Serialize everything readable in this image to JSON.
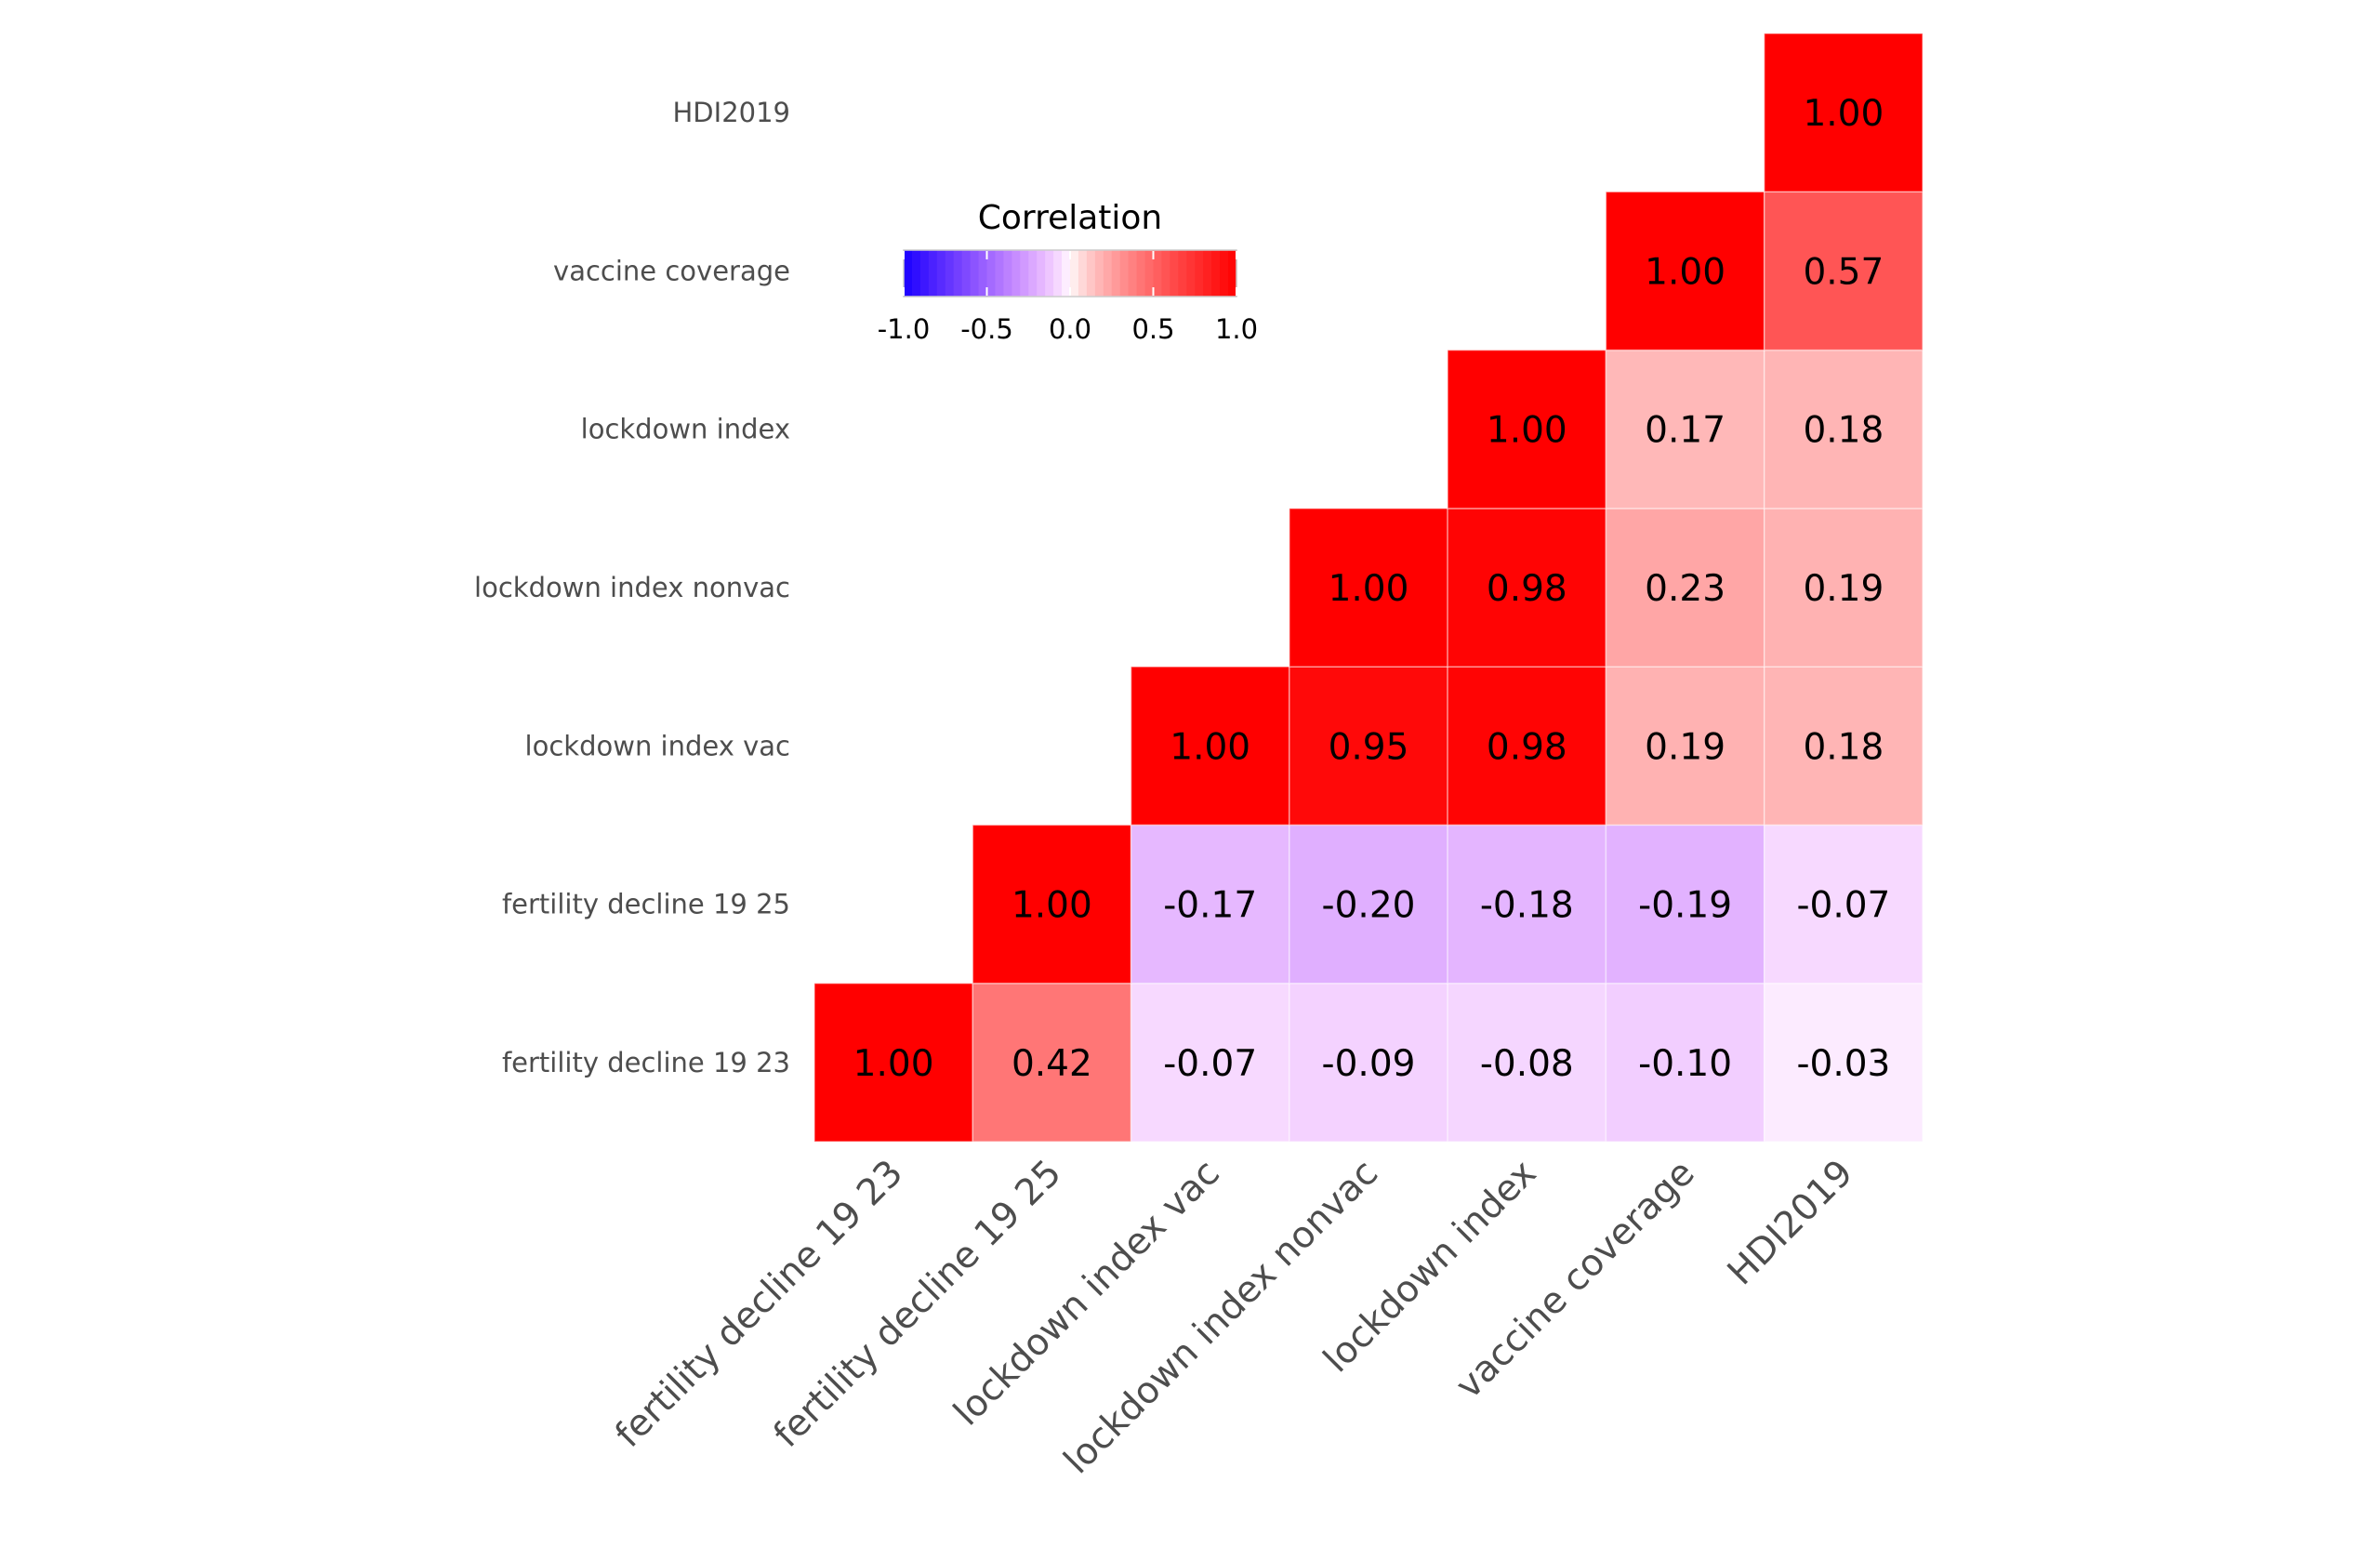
{
  "chart_data": {
    "type": "heatmap",
    "title": "",
    "xlabel": "",
    "ylabel": "",
    "variables": [
      "fertility decline 19 23",
      "fertility decline 19 25",
      "lockdown index vac",
      "lockdown index nonvac",
      "lockdown index",
      "vaccine coverage",
      "HDI2019"
    ],
    "x_tick_labels": [
      "fertility decline 19 23",
      "fertility decline 19 25",
      "lockdown index vac",
      "lockdown index nonvac",
      "lockdown index",
      "vaccine coverage",
      "HDI2019"
    ],
    "y_tick_labels_bottom_to_top": [
      "fertility decline 19 23",
      "fertility decline 19 25",
      "lockdown index vac",
      "lockdown index nonvac",
      "lockdown index",
      "vaccine coverage",
      "HDI2019"
    ],
    "matrix_note": "Upper triangle shown; row i (y, bottom to top) vs column j (x, left to right), null = not drawn",
    "matrix": [
      [
        1.0,
        0.42,
        -0.07,
        -0.09,
        -0.08,
        -0.1,
        -0.03
      ],
      [
        null,
        1.0,
        -0.17,
        -0.2,
        -0.18,
        -0.19,
        -0.07
      ],
      [
        null,
        null,
        1.0,
        0.95,
        0.98,
        0.19,
        0.18
      ],
      [
        null,
        null,
        null,
        1.0,
        0.98,
        0.23,
        0.19
      ],
      [
        null,
        null,
        null,
        null,
        1.0,
        0.17,
        0.18
      ],
      [
        null,
        null,
        null,
        null,
        null,
        1.0,
        0.57
      ],
      [
        null,
        null,
        null,
        null,
        null,
        null,
        1.0
      ]
    ],
    "labels": [
      [
        "1.00",
        "0.42",
        "-0.07",
        "-0.09",
        "-0.08",
        "-0.10",
        "-0.03"
      ],
      [
        null,
        "1.00",
        "-0.17",
        "-0.20",
        "-0.18",
        "-0.19",
        "-0.07"
      ],
      [
        null,
        null,
        "1.00",
        "0.95",
        "0.98",
        "0.19",
        "0.18"
      ],
      [
        null,
        null,
        null,
        "1.00",
        "0.98",
        "0.23",
        "0.19"
      ],
      [
        null,
        null,
        null,
        null,
        "1.00",
        "0.17",
        "0.18"
      ],
      [
        null,
        null,
        null,
        null,
        null,
        "1.00",
        "0.57"
      ],
      [
        null,
        null,
        null,
        null,
        null,
        null,
        "1.00"
      ]
    ],
    "color_scale": {
      "low": "#0000ff",
      "mid": "#ffffff",
      "high": "#ff0000",
      "limits": [
        -1,
        1
      ]
    },
    "legend": {
      "title": "Correlation",
      "placement": "top-left inside plot",
      "orientation": "horizontal",
      "ticks": [
        -1.0,
        -0.5,
        0.0,
        0.5,
        1.0
      ],
      "tick_labels": [
        "-1.0",
        "-0.5",
        "0.0",
        "0.5",
        "1.0"
      ]
    },
    "grid": false
  }
}
